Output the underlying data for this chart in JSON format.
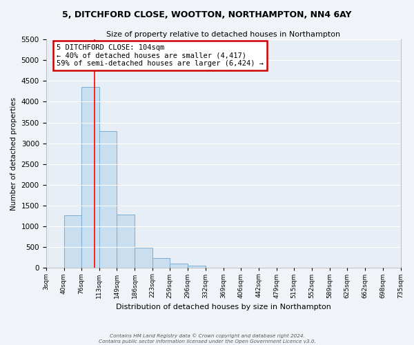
{
  "title": "5, DITCHFORD CLOSE, WOOTTON, NORTHAMPTON, NN4 6AY",
  "subtitle": "Size of property relative to detached houses in Northampton",
  "xlabel": "Distribution of detached houses by size in Northampton",
  "ylabel": "Number of detached properties",
  "bar_color": "#c9dff0",
  "bar_edge_color": "#7aadd4",
  "background_color": "#e8eef5",
  "grid_color": "#ffffff",
  "bin_edges": [
    3,
    40,
    76,
    113,
    149,
    186,
    223,
    259,
    296,
    332,
    369,
    406,
    442,
    479,
    515,
    552,
    589,
    625,
    662,
    698,
    735
  ],
  "bin_counts": [
    0,
    1270,
    4350,
    3300,
    1290,
    490,
    240,
    100,
    60,
    0,
    0,
    0,
    0,
    0,
    0,
    0,
    0,
    0,
    0,
    0
  ],
  "tick_labels": [
    "3sqm",
    "40sqm",
    "76sqm",
    "113sqm",
    "149sqm",
    "186sqm",
    "223sqm",
    "259sqm",
    "296sqm",
    "332sqm",
    "369sqm",
    "406sqm",
    "442sqm",
    "479sqm",
    "515sqm",
    "552sqm",
    "589sqm",
    "625sqm",
    "662sqm",
    "698sqm",
    "735sqm"
  ],
  "ylim": [
    0,
    5500
  ],
  "yticks": [
    0,
    500,
    1000,
    1500,
    2000,
    2500,
    3000,
    3500,
    4000,
    4500,
    5000,
    5500
  ],
  "red_line_x": 104,
  "annotation_title": "5 DITCHFORD CLOSE: 104sqm",
  "annotation_line1": "← 40% of detached houses are smaller (4,417)",
  "annotation_line2": "59% of semi-detached houses are larger (6,424) →",
  "annotation_box_color": "#ffffff",
  "annotation_box_edge": "#cc0000",
  "footer1": "Contains HM Land Registry data © Crown copyright and database right 2024.",
  "footer2": "Contains public sector information licensed under the Open Government Licence v3.0."
}
